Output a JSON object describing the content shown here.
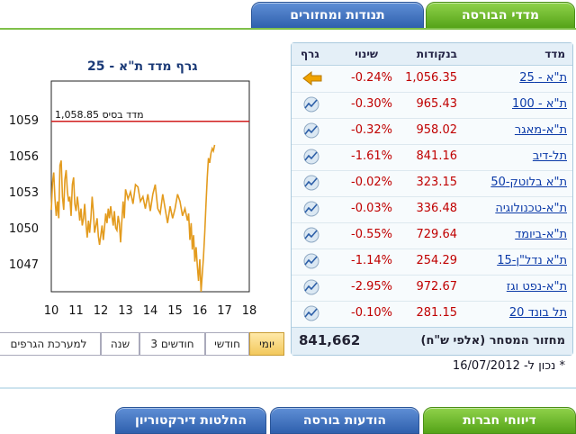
{
  "top_tabs": [
    {
      "label": "מדדי הבורסה"
    },
    {
      "label": "תנודות ומחזורים"
    }
  ],
  "bottom_tabs": [
    {
      "label": "דיווחי חברות"
    },
    {
      "label": "הודעות בורסה"
    },
    {
      "label": "החלטות דירקטוריון"
    }
  ],
  "table": {
    "headers": {
      "name": "מדד",
      "points": "בנקודות",
      "change": "שינוי",
      "graph": "גרף"
    },
    "rows": [
      {
        "name": "ת\"א - 25",
        "points": "1,056.35",
        "change": "-0.24%",
        "icon": "arrow-left-icon"
      },
      {
        "name": "ת\"א - 100",
        "points": "965.43",
        "change": "-0.30%",
        "icon": "graph-icon"
      },
      {
        "name": "ת\"א-מאגר",
        "points": "958.02",
        "change": "-0.32%",
        "icon": "graph-icon"
      },
      {
        "name": "תל-דיב",
        "points": "841.16",
        "change": "-1.61%",
        "icon": "graph-icon"
      },
      {
        "name": "ת\"א בלוטק-50",
        "points": "323.15",
        "change": "-0.02%",
        "icon": "graph-icon"
      },
      {
        "name": "ת\"א-טכנולוגיה",
        "points": "336.48",
        "change": "-0.03%",
        "icon": "graph-icon"
      },
      {
        "name": "ת\"א-ביומד",
        "points": "729.64",
        "change": "-0.55%",
        "icon": "graph-icon"
      },
      {
        "name": "ת\"א נדל\"ן-15",
        "points": "254.29",
        "change": "-1.14%",
        "icon": "graph-icon"
      },
      {
        "name": "ת\"א-נפט וגז",
        "points": "972.67",
        "change": "-2.95%",
        "icon": "graph-icon"
      },
      {
        "name": "תל בונד 20",
        "points": "281.15",
        "change": "-0.10%",
        "icon": "graph-icon"
      }
    ],
    "footer": {
      "label": "מחזור המסחר (אלפי ש\"ח)",
      "value": "841,662"
    }
  },
  "updated": "* נכון ל- 16/07/2012",
  "range_buttons": [
    {
      "label": "יומי",
      "selected": true
    },
    {
      "label": "חודשי",
      "selected": false
    },
    {
      "label": "3 חודשים",
      "selected": false
    },
    {
      "label": "שנה",
      "selected": false
    },
    {
      "label": "למערכת הגרפים",
      "selected": false
    }
  ],
  "colors": {
    "line": "#e39b1e",
    "base_line": "#d11d1d",
    "link": "#0b3aa8",
    "negative": "#c00000"
  },
  "chart_data": {
    "type": "line",
    "title": "גרף מדד ת\"א - 25",
    "base_label": "מדד בסיס 1,058.85",
    "base_value": 1058.85,
    "yticks": [
      1047,
      1050,
      1053,
      1056,
      1059
    ],
    "xticks": [
      10,
      11,
      12,
      13,
      14,
      15,
      16,
      17,
      18
    ],
    "ylim": [
      1044.7,
      1062.2
    ],
    "xlim": [
      10,
      18
    ],
    "series": [
      {
        "x": [
          10.0,
          10.05,
          10.1,
          10.15,
          10.2,
          10.25,
          10.3,
          10.35,
          10.4,
          10.45,
          10.5,
          10.55,
          10.6,
          10.65,
          10.7,
          10.75,
          10.8,
          10.85,
          10.9,
          10.95,
          11.0,
          11.05,
          11.1,
          11.15,
          11.2,
          11.25,
          11.3,
          11.35,
          11.4,
          11.45,
          11.5,
          11.55,
          11.6,
          11.65,
          11.7,
          11.75,
          11.8,
          11.85,
          11.9,
          11.95,
          12.0,
          12.05,
          12.1,
          12.15,
          12.2,
          12.25,
          12.3,
          12.35,
          12.4,
          12.45,
          12.5,
          12.55,
          12.6,
          12.65,
          12.7,
          12.75,
          12.8,
          12.85,
          12.9,
          12.95,
          13.0,
          13.1,
          13.2,
          13.3,
          13.4,
          13.5,
          13.6,
          13.7,
          13.8,
          13.9,
          14.0,
          14.1,
          14.2,
          14.3,
          14.4,
          14.5,
          14.6,
          14.7,
          14.8,
          14.9,
          15.0,
          15.1,
          15.2,
          15.3,
          15.4,
          15.5,
          15.55,
          15.6,
          15.65,
          15.7,
          15.75,
          15.8,
          15.85,
          15.9,
          15.95,
          16.0,
          16.05,
          16.1,
          16.15,
          16.2,
          16.25,
          16.3,
          16.35,
          16.4,
          16.45,
          16.5,
          16.55,
          16.6
        ],
        "values": [
          1051.5,
          1053.8,
          1054.6,
          1052.4,
          1051.0,
          1052.2,
          1050.8,
          1055.2,
          1055.6,
          1052.6,
          1051.5,
          1054.0,
          1054.8,
          1053.0,
          1052.2,
          1052.6,
          1051.0,
          1053.6,
          1054.2,
          1052.0,
          1051.4,
          1052.6,
          1051.8,
          1050.6,
          1051.6,
          1050.2,
          1050.8,
          1052.0,
          1050.4,
          1049.2,
          1050.6,
          1049.6,
          1050.8,
          1052.6,
          1051.4,
          1049.6,
          1050.2,
          1050.8,
          1049.3,
          1048.6,
          1049.4,
          1050.2,
          1049.0,
          1050.0,
          1051.2,
          1050.4,
          1051.6,
          1050.8,
          1051.8,
          1051.0,
          1050.2,
          1051.4,
          1050.0,
          1049.8,
          1051.0,
          1050.4,
          1048.8,
          1050.6,
          1052.2,
          1050.8,
          1053.2,
          1052.4,
          1053.0,
          1052.0,
          1053.6,
          1053.4,
          1052.2,
          1052.6,
          1051.6,
          1052.8,
          1051.4,
          1052.8,
          1053.6,
          1051.6,
          1051.2,
          1052.8,
          1051.6,
          1050.4,
          1051.8,
          1050.8,
          1051.6,
          1052.8,
          1052.2,
          1051.0,
          1051.6,
          1050.6,
          1051.2,
          1049.0,
          1050.4,
          1048.2,
          1049.4,
          1047.2,
          1048.4,
          1046.8,
          1045.6,
          1047.4,
          1044.7,
          1046.2,
          1047.6,
          1049.6,
          1052.0,
          1054.2,
          1055.8,
          1055.4,
          1056.2,
          1056.6,
          1056.4,
          1056.9
        ]
      }
    ]
  }
}
